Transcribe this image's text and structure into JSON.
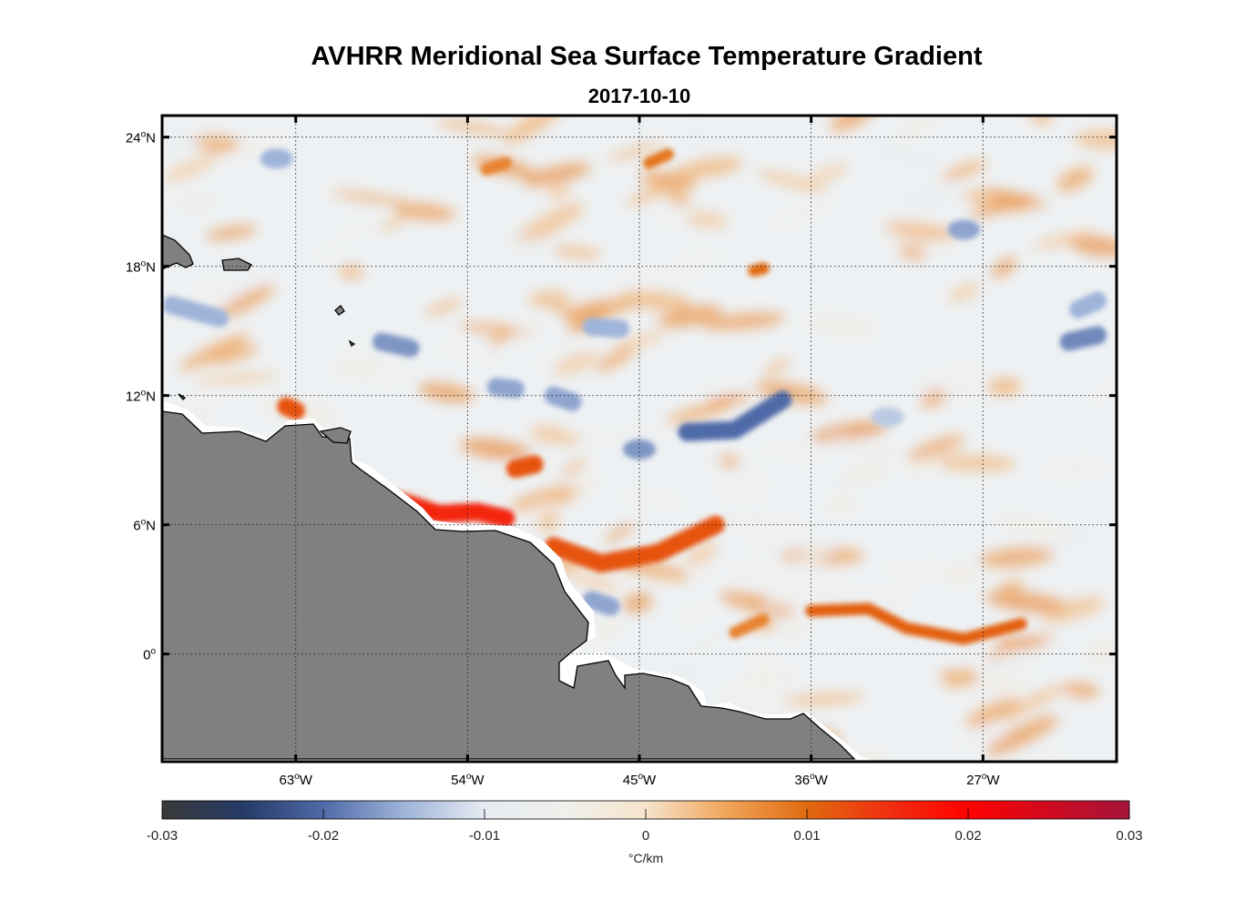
{
  "title": "AVHRR Meridional Sea Surface Temperature Gradient",
  "subtitle": "2017-10-10",
  "map": {
    "projection": "equirectangular",
    "lon_range": [
      -70,
      -20
    ],
    "lat_range": [
      -5,
      25
    ],
    "grid": true,
    "land_color": "#808080",
    "y_ticks": [
      {
        "value": 24,
        "num": "24",
        "hemi": "N"
      },
      {
        "value": 18,
        "num": "18",
        "hemi": "N"
      },
      {
        "value": 12,
        "num": "12",
        "hemi": "N"
      },
      {
        "value": 6,
        "num": "6",
        "hemi": "N"
      },
      {
        "value": 0,
        "num": "0",
        "hemi": ""
      }
    ],
    "x_ticks": [
      {
        "value": -63,
        "num": "63",
        "hemi": "W"
      },
      {
        "value": -54,
        "num": "54",
        "hemi": "W"
      },
      {
        "value": -45,
        "num": "45",
        "hemi": "W"
      },
      {
        "value": -36,
        "num": "36",
        "hemi": "W"
      },
      {
        "value": -27,
        "num": "27",
        "hemi": "W"
      }
    ],
    "degree_symbol": "o"
  },
  "colorbar": {
    "range": [
      -0.03,
      0.03
    ],
    "ticks": [
      "-0.03",
      "-0.02",
      "-0.01",
      "0",
      "0.01",
      "0.02",
      "0.03"
    ],
    "unit_label": "°C/km",
    "colors": [
      "#3a3a3a",
      "#253a66",
      "#4f6aa8",
      "#9fb4d9",
      "#e6ebf2",
      "#f0f0ec",
      "#f6e4cc",
      "#f1a55a",
      "#e06a10",
      "#f03010",
      "#ff0000",
      "#d00a20",
      "#a3153a"
    ]
  },
  "chart_data": {
    "type": "heatmap",
    "variable": "meridional SST gradient",
    "units": "°C/km",
    "color_range": [
      -0.03,
      0.03
    ],
    "x_range": [
      -70,
      -20
    ],
    "y_range": [
      -5,
      25
    ],
    "features": [
      {
        "sign": "positive",
        "points": [
          [
            -58,
            7.2
          ],
          [
            -55.5,
            6.5
          ],
          [
            -53.5,
            6.6
          ],
          [
            -52,
            6.3
          ]
        ],
        "value": 0.016
      },
      {
        "sign": "positive",
        "points": [
          [
            -51.5,
            8.6
          ],
          [
            -50.5,
            8.8
          ]
        ],
        "value": 0.012
      },
      {
        "sign": "positive",
        "points": [
          [
            -49.5,
            5.0
          ],
          [
            -47,
            4.2
          ],
          [
            -44,
            4.7
          ],
          [
            -41,
            6.0
          ]
        ],
        "value": 0.012
      },
      {
        "sign": "positive",
        "points": [
          [
            -36,
            2.0
          ],
          [
            -33,
            2.1
          ],
          [
            -31,
            1.2
          ],
          [
            -28,
            0.7
          ],
          [
            -25,
            1.4
          ]
        ],
        "value": 0.011
      },
      {
        "sign": "positive",
        "points": [
          [
            -63.5,
            11.5
          ],
          [
            -63,
            11.3
          ]
        ],
        "value": 0.012
      },
      {
        "sign": "negative",
        "points": [
          [
            -42.5,
            10.3
          ],
          [
            -40,
            10.4
          ],
          [
            -37.5,
            11.8
          ]
        ],
        "value": -0.02
      },
      {
        "sign": "negative",
        "points": [
          [
            -45,
            9.5
          ]
        ],
        "value": -0.017
      },
      {
        "sign": "negative",
        "points": [
          [
            -58.5,
            14.5
          ],
          [
            -57,
            14.2
          ]
        ],
        "value": -0.017
      },
      {
        "sign": "negative",
        "points": [
          [
            -52.5,
            12.4
          ],
          [
            -51.5,
            12.3
          ]
        ],
        "value": -0.016
      },
      {
        "sign": "negative",
        "points": [
          [
            -49.5,
            12.0
          ],
          [
            -48.5,
            11.7
          ]
        ],
        "value": -0.016
      },
      {
        "sign": "negative",
        "points": [
          [
            -47.5,
            15.2
          ],
          [
            -46,
            15.1
          ]
        ],
        "value": -0.015
      },
      {
        "sign": "negative",
        "points": [
          [
            -69.5,
            16.2
          ],
          [
            -67,
            15.6
          ]
        ],
        "value": -0.015
      },
      {
        "sign": "negative",
        "points": [
          [
            -64,
            23.0
          ]
        ],
        "value": -0.015
      },
      {
        "sign": "negative",
        "points": [
          [
            -32,
            11.0
          ]
        ],
        "value": -0.013
      },
      {
        "sign": "negative",
        "points": [
          [
            -22.5,
            14.5
          ],
          [
            -21,
            14.8
          ]
        ],
        "value": -0.018
      },
      {
        "sign": "negative",
        "points": [
          [
            -47.5,
            2.5
          ],
          [
            -46.5,
            2.2
          ]
        ],
        "value": -0.016
      },
      {
        "sign": "negative",
        "points": [
          [
            -28,
            19.7
          ]
        ],
        "value": -0.016
      },
      {
        "sign": "negative",
        "points": [
          [
            -22,
            16.0
          ],
          [
            -21,
            16.4
          ]
        ],
        "value": -0.015
      },
      {
        "sign": "positive",
        "points": [
          [
            -44.5,
            22.8
          ],
          [
            -43.5,
            23.2
          ]
        ],
        "value": 0.009
      },
      {
        "sign": "positive",
        "points": [
          [
            -53,
            22.5
          ],
          [
            -52,
            22.8
          ]
        ],
        "value": 0.008
      },
      {
        "sign": "positive",
        "points": [
          [
            -39,
            17.8
          ],
          [
            -38.5,
            17.9
          ]
        ],
        "value": 0.01
      },
      {
        "sign": "positive",
        "points": [
          [
            -40,
            1.0
          ],
          [
            -38.5,
            1.6
          ]
        ],
        "value": 0.008
      }
    ]
  }
}
